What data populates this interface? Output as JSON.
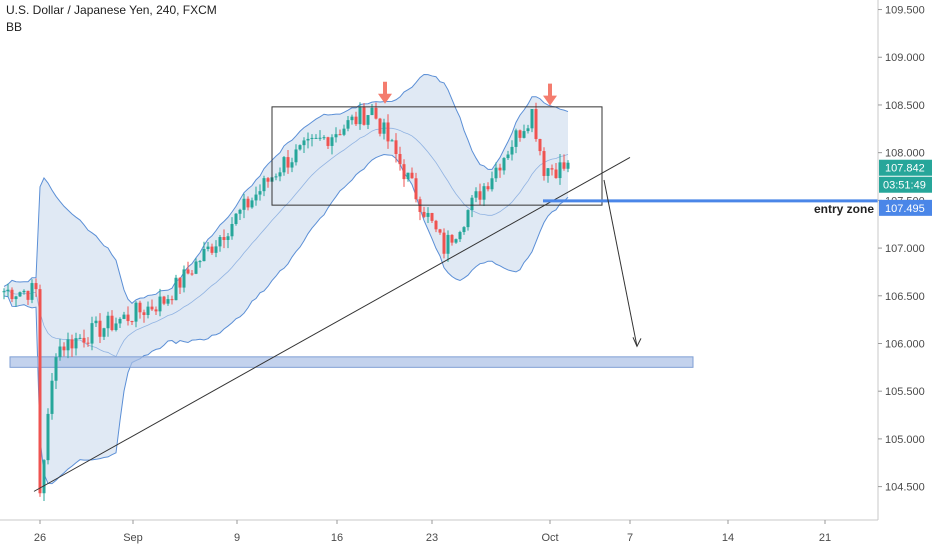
{
  "header": {
    "title": "U.S. Dollar / Japanese Yen, 240, FXCM",
    "indicator": "BB"
  },
  "colors": {
    "up": "#26a69a",
    "down": "#ef5350",
    "bb_fill": "#d6e2f0",
    "bb_line": "#5b8fd6",
    "zone": "#a9bfe6",
    "entry_line": "#4a86e8",
    "arrow_marker": "#f47c6e",
    "last_price_bg": "#26a69a",
    "entry_bg": "#4a86e8",
    "axis_text": "#4a4a4a"
  },
  "chart_data": {
    "type": "candlestick",
    "title": "U.S. Dollar / Japanese Yen, 240, FXCM",
    "ylim": [
      104.15,
      109.6
    ],
    "y_ticks": [
      "109.500",
      "109.000",
      "108.500",
      "108.000",
      "107.500",
      "107.000",
      "106.500",
      "106.000",
      "105.500",
      "105.000",
      "104.500"
    ],
    "x_ticks": [
      "26",
      "Sep",
      "9",
      "16",
      "23",
      "Oct",
      "7",
      "14",
      "21"
    ],
    "grid": false,
    "anchors": {
      "start_price": 106.55,
      "low": 104.45,
      "rebound": 105.95,
      "mid": 106.45,
      "top1": 108.45,
      "dip": 107.0,
      "top2": 108.43,
      "current": 107.842
    },
    "price_labels": {
      "last_price": "107.842",
      "countdown": "03:51:49",
      "entry_price": "107.495"
    },
    "annotations": {
      "entry_label": "entry zone",
      "support_zone": [
        105.75,
        105.86
      ],
      "entry_level": 107.495,
      "range_box": [
        107.45,
        108.48
      ],
      "trendline": [
        104.45,
        107.95
      ],
      "target": 105.97
    }
  }
}
